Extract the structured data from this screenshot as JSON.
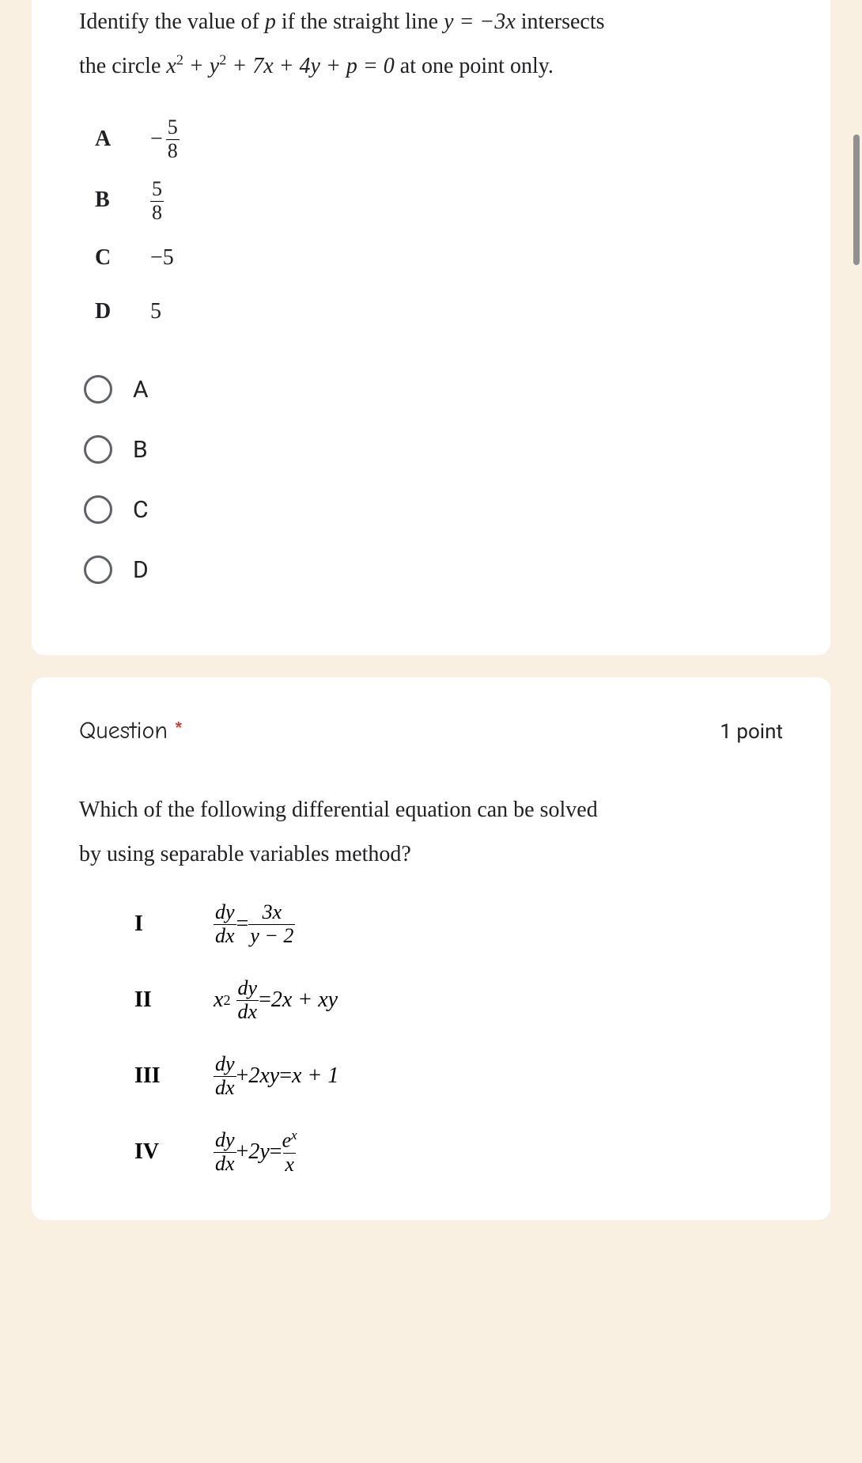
{
  "colors": {
    "page_bg": "#f9f0e1",
    "card_bg": "#ffffff",
    "text": "#202124",
    "radio_border": "#5f6368",
    "required": "#d93025",
    "scrollbar": "#909090"
  },
  "q1": {
    "prompt_line1_pre": "Identify the value of ",
    "prompt_line1_p": "p",
    "prompt_line1_mid": " if the straight line  ",
    "prompt_line1_eq": "y = −3x",
    "prompt_line1_post": "  intersects",
    "prompt_line2_pre": "the circle  ",
    "prompt_line2_eq_a": "x",
    "prompt_line2_eq_sup": "2",
    "prompt_line2_eq_b": " + y",
    "prompt_line2_eq_sup2": "2",
    "prompt_line2_eq_c": " + 7x + 4y + p = 0",
    "prompt_line2_post": "   at one point only.",
    "rows": [
      {
        "letter": "A",
        "neg": "−",
        "num": "5",
        "den": "8"
      },
      {
        "letter": "B",
        "neg": "",
        "num": "5",
        "den": "8"
      },
      {
        "letter": "C",
        "plain": "−5"
      },
      {
        "letter": "D",
        "plain": "5"
      }
    ],
    "options": [
      "A",
      "B",
      "C",
      "D"
    ]
  },
  "q2": {
    "title": "Question",
    "required_mark": "*",
    "points": "1 point",
    "prompt_line1": "Which of the following differential equation can be solved",
    "prompt_line2": "by using separable variables method?",
    "equations": {
      "I": {
        "label": "I"
      },
      "II": {
        "label": "II"
      },
      "III": {
        "label": "III"
      },
      "IV": {
        "label": "IV"
      }
    },
    "tokens": {
      "dy": "dy",
      "dx": "dx",
      "eq": " = ",
      "plus": " + ",
      "threex": "3x",
      "ym2": "y − 2",
      "x": "x",
      "two": "2",
      "twox_xy": "2x + xy",
      "twoxy": "2xy",
      "xp1": "x + 1",
      "twoy": "2y",
      "e": "e",
      "xvar": "x"
    }
  }
}
